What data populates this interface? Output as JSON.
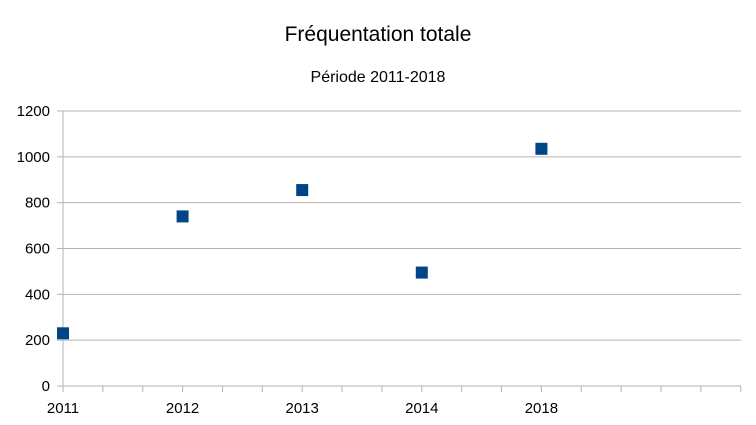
{
  "chart_data": {
    "type": "scatter",
    "title": "Fréquentation totale",
    "subtitle": "Période 2011-2018",
    "xlabel": "",
    "ylabel": "",
    "x_tick_labels": [
      "2011",
      "2012",
      "2013",
      "2014",
      "2018"
    ],
    "y_ticks": [
      0,
      200,
      400,
      600,
      800,
      1000,
      1200
    ],
    "ylim": [
      0,
      1200
    ],
    "grid": "horizontal",
    "legend": "none",
    "marker_color": "#004586",
    "series": [
      {
        "x": [
          "2011",
          "2012",
          "2013",
          "2014",
          "2018"
        ],
        "values": [
          230,
          740,
          855,
          495,
          1035
        ]
      }
    ]
  }
}
